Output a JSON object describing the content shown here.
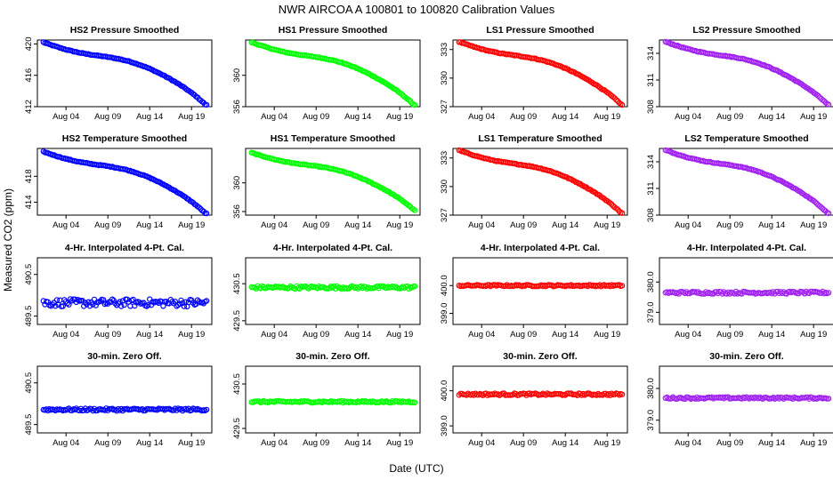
{
  "title": "NWR   AIRCOA A   100801 to 100820   Calibration Values",
  "xlabel": "Date (UTC)",
  "ylabel": "Measured CO2 (ppm)",
  "x_ticks": [
    "Aug 04",
    "Aug 09",
    "Aug 14",
    "Aug 19"
  ],
  "x_tick_days": [
    4,
    9,
    14,
    19
  ],
  "x_range_days": [
    1,
    21
  ],
  "colors": {
    "HS2": "#0000ff",
    "HS1": "#00ff00",
    "LS1": "#ff0000",
    "LS2": "#a020f0"
  },
  "chart_data": [
    {
      "type": "scatter",
      "title": "HS2 Pressure Smoothed",
      "series": "HS2",
      "shape": "decline",
      "start": 420.2,
      "end": 412.2,
      "ylim": [
        412,
        420.5
      ],
      "yticks": [
        "412",
        "416",
        "420"
      ],
      "ytick_values": [
        412,
        416,
        420
      ]
    },
    {
      "type": "scatter",
      "title": "HS1 Pressure Smoothed",
      "series": "HS1",
      "shape": "decline",
      "start": 364.2,
      "end": 356.2,
      "ylim": [
        356,
        364.5
      ],
      "yticks": [
        "356",
        "360"
      ],
      "ytick_values": [
        356,
        360
      ]
    },
    {
      "type": "scatter",
      "title": "LS1 Pressure Smoothed",
      "series": "LS1",
      "shape": "decline",
      "start": 333.8,
      "end": 327.2,
      "ylim": [
        327,
        334
      ],
      "yticks": [
        "327",
        "330",
        "333"
      ],
      "ytick_values": [
        327,
        330,
        333
      ]
    },
    {
      "type": "scatter",
      "title": "LS2 Pressure Smoothed",
      "series": "LS2",
      "shape": "decline",
      "start": 315.3,
      "end": 308.2,
      "ylim": [
        308,
        315.5
      ],
      "yticks": [
        "308",
        "311",
        "314"
      ],
      "ytick_values": [
        308,
        311,
        314
      ]
    },
    {
      "type": "scatter",
      "title": "HS2 Temperature Smoothed",
      "series": "HS2",
      "shape": "decline",
      "start": 421.8,
      "end": 412.2,
      "ylim": [
        412,
        422.3
      ],
      "yticks": [
        "414",
        "418"
      ],
      "ytick_values": [
        414,
        418
      ]
    },
    {
      "type": "scatter",
      "title": "HS1 Temperature Smoothed",
      "series": "HS1",
      "shape": "decline",
      "start": 364.2,
      "end": 356.2,
      "ylim": [
        355.5,
        364.8
      ],
      "yticks": [
        "356",
        "360"
      ],
      "ytick_values": [
        356,
        360
      ]
    },
    {
      "type": "scatter",
      "title": "LS1 Temperature Smoothed",
      "series": "LS1",
      "shape": "decline",
      "start": 333.8,
      "end": 327.2,
      "ylim": [
        327,
        334
      ],
      "yticks": [
        "327",
        "330",
        "333"
      ],
      "ytick_values": [
        327,
        330,
        333
      ]
    },
    {
      "type": "scatter",
      "title": "LS2 Temperature Smoothed",
      "series": "LS2",
      "shape": "decline",
      "start": 315.3,
      "end": 308.2,
      "ylim": [
        308,
        315.5
      ],
      "yticks": [
        "308",
        "311",
        "314"
      ],
      "ytick_values": [
        308,
        311,
        314
      ]
    },
    {
      "type": "scatter",
      "title": "4-Hr. Interpolated 4-Pt. Cal.",
      "series": "HS2",
      "shape": "flat",
      "level": 489.82,
      "noise": 0.09,
      "ylim": [
        489.3,
        490.9
      ],
      "yticks": [
        "489.5",
        "490.5"
      ],
      "ytick_values": [
        489.5,
        490.5
      ]
    },
    {
      "type": "scatter",
      "title": "4-Hr. Interpolated 4-Pt. Cal.",
      "series": "HS1",
      "shape": "flat",
      "level": 430.4,
      "noise": 0.04,
      "ylim": [
        429.4,
        431.2
      ],
      "yticks": [
        "429.5",
        "430.5"
      ],
      "ytick_values": [
        429.5,
        430.5
      ]
    },
    {
      "type": "scatter",
      "title": "4-Hr. Interpolated 4-Pt. Cal.",
      "series": "LS1",
      "shape": "flat",
      "level": 400.0,
      "noise": 0.03,
      "ylim": [
        398.6,
        401.0
      ],
      "yticks": [
        "399.0",
        "400.0"
      ],
      "ytick_values": [
        399.0,
        400.0
      ]
    },
    {
      "type": "scatter",
      "title": "4-Hr. Interpolated 4-Pt. Cal.",
      "series": "LS2",
      "shape": "flat",
      "level": 379.65,
      "noise": 0.04,
      "ylim": [
        378.6,
        380.8
      ],
      "yticks": [
        "379.0",
        "380.0"
      ],
      "ytick_values": [
        379.0,
        380.0
      ]
    },
    {
      "type": "scatter",
      "title": "30-min. Zero Off.",
      "series": "HS2",
      "shape": "flat",
      "level": 489.86,
      "noise": 0.03,
      "ylim": [
        489.3,
        490.9
      ],
      "yticks": [
        "489.5",
        "490.5"
      ],
      "ytick_values": [
        489.5,
        490.5
      ]
    },
    {
      "type": "scatter",
      "title": "30-min. Zero Off.",
      "series": "HS1",
      "shape": "flat",
      "level": 430.1,
      "noise": 0.02,
      "ylim": [
        429.4,
        430.9
      ],
      "yticks": [
        "429.5",
        "430.5"
      ],
      "ytick_values": [
        429.5,
        430.5
      ]
    },
    {
      "type": "scatter",
      "title": "30-min. Zero Off.",
      "series": "LS1",
      "shape": "flat",
      "level": 399.9,
      "noise": 0.03,
      "ylim": [
        398.8,
        400.7
      ],
      "yticks": [
        "399.0",
        "400.0"
      ],
      "ytick_values": [
        399.0,
        400.0
      ]
    },
    {
      "type": "scatter",
      "title": "30-min. Zero Off.",
      "series": "LS2",
      "shape": "flat",
      "level": 379.7,
      "noise": 0.03,
      "ylim": [
        378.6,
        380.7
      ],
      "yticks": [
        "379.0",
        "380.0"
      ],
      "ytick_values": [
        379.0,
        380.0
      ]
    }
  ]
}
